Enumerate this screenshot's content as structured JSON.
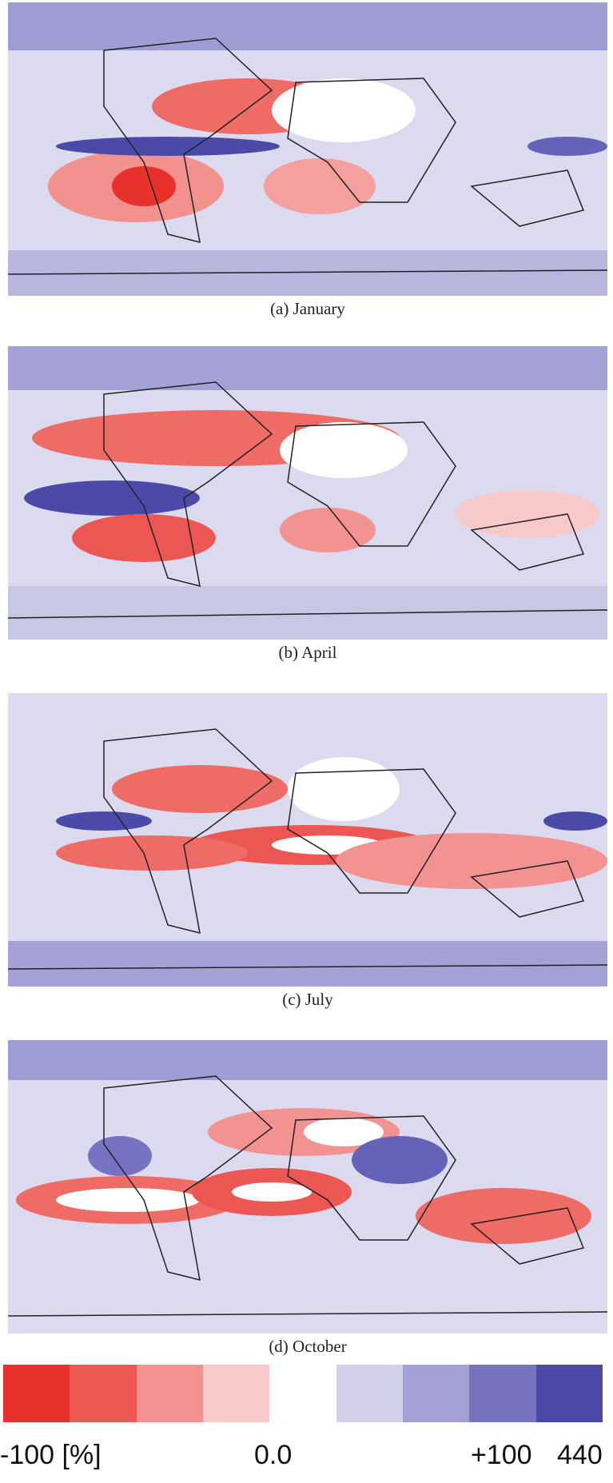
{
  "panels": [
    {
      "caption": "(a)  January"
    },
    {
      "caption": "(b)  April"
    },
    {
      "caption": "(c)  July"
    },
    {
      "caption": "(d)  October"
    }
  ],
  "colorbar": {
    "colors": [
      "#e8302c",
      "#ec5754",
      "#f29291",
      "#f7c9c8",
      "#ffffff",
      "#d2d0e8",
      "#a3a1d5",
      "#7674c2",
      "#4b4aa9"
    ],
    "labels": [
      "-100 [%]",
      "0.0",
      "+100",
      "440"
    ]
  }
}
